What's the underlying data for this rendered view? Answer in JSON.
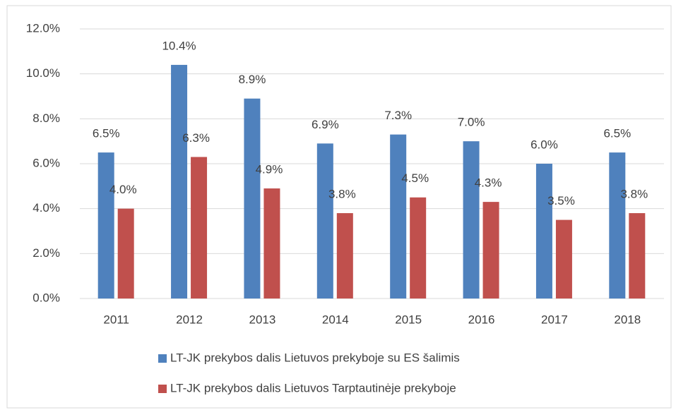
{
  "chart_data": {
    "type": "bar",
    "categories": [
      "2011",
      "2012",
      "2013",
      "2014",
      "2015",
      "2016",
      "2017",
      "2018"
    ],
    "series": [
      {
        "name": "LT-JK prekybos dalis Lietuvos prekyboje su ES šalimis",
        "color": "#4f81bd",
        "values": [
          6.5,
          10.4,
          8.9,
          6.9,
          7.3,
          7.0,
          6.0,
          6.5
        ],
        "value_labels": [
          "6.5%",
          "10.4%",
          "8.9%",
          "6.9%",
          "7.3%",
          "7.0%",
          "6.0%",
          "6.5%"
        ]
      },
      {
        "name": "LT-JK prekybos dalis Lietuvos Tarptautinėje prekyboje",
        "color": "#c0504d",
        "values": [
          4.0,
          6.3,
          4.9,
          3.8,
          4.5,
          4.3,
          3.5,
          3.8
        ],
        "value_labels": [
          "4.0%",
          "6.3%",
          "4.9%",
          "3.8%",
          "4.5%",
          "4.3%",
          "3.5%",
          "3.8%"
        ]
      }
    ],
    "ylim": [
      0,
      12
    ],
    "yticks": [
      {
        "value": 0,
        "label": "0.0%"
      },
      {
        "value": 2,
        "label": "2.0%"
      },
      {
        "value": 4,
        "label": "4.0%"
      },
      {
        "value": 6,
        "label": "6.0%"
      },
      {
        "value": 8,
        "label": "8.0%"
      },
      {
        "value": 10,
        "label": "10.0%"
      },
      {
        "value": 12,
        "label": "12.0%"
      }
    ],
    "grid": true,
    "legend": "bottom"
  }
}
